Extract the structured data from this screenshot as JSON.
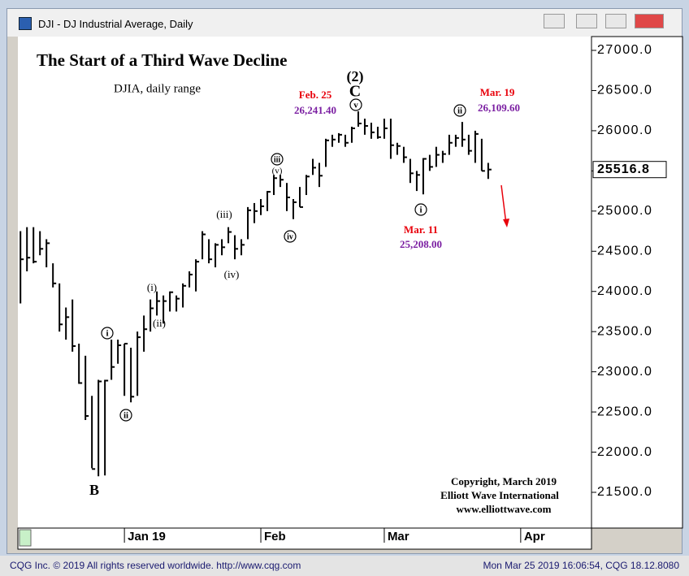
{
  "window": {
    "title": "DJI - DJ Industrial Average, Daily"
  },
  "footer": {
    "left": "CQG Inc. © 2019 All rights reserved worldwide. http://www.cqg.com",
    "right": "Mon Mar 25 2019 16:06:54, CQG 18.12.8080"
  },
  "chart_data": {
    "type": "range-bar",
    "title": "The Start of a Third Wave Decline",
    "subtitle": "DJIA, daily range",
    "color": "#000000",
    "categories": [
      null,
      null,
      null,
      null,
      null,
      null,
      null,
      null,
      null,
      null,
      null,
      null,
      null,
      null,
      null,
      null,
      null,
      null,
      null,
      null,
      null,
      null,
      null,
      null,
      null,
      null,
      null,
      null,
      null,
      null,
      null,
      null,
      null,
      null,
      null,
      null,
      null,
      null,
      null,
      null,
      null,
      null,
      null,
      null,
      null,
      null,
      null,
      null,
      null,
      null,
      null,
      null,
      null,
      null,
      null,
      null,
      null,
      null,
      null,
      null,
      null,
      null,
      null,
      null,
      null,
      null,
      null,
      null,
      null,
      null,
      null,
      null,
      null
    ],
    "high": [
      24750,
      24800,
      24800,
      24750,
      24650,
      24350,
      24100,
      23800,
      23900,
      23350,
      23200,
      22700,
      22900,
      22900,
      23400,
      23400,
      23350,
      23300,
      23500,
      23700,
      23900,
      24000,
      23950,
      24000,
      23950,
      24100,
      24250,
      24400,
      24750,
      24650,
      24600,
      24650,
      24800,
      24700,
      24650,
      25050,
      25100,
      25150,
      25250,
      25450,
      25450,
      25350,
      25150,
      25300,
      25450,
      25650,
      25600,
      25900,
      25950,
      25970,
      25950,
      26050,
      26241.4,
      26150,
      26100,
      26050,
      26150,
      26150,
      25850,
      25800,
      25650,
      25500,
      25660,
      25700,
      25800,
      25750,
      25950,
      25950,
      26109.6,
      25950,
      26000,
      25900,
      25600
    ],
    "low": [
      23850,
      24250,
      24350,
      24450,
      24300,
      24050,
      23500,
      23400,
      23250,
      22850,
      22400,
      21800,
      21700,
      21710,
      22900,
      23100,
      22700,
      22620,
      22700,
      23250,
      23500,
      23700,
      23600,
      23750,
      23750,
      23800,
      24050,
      24000,
      24400,
      24350,
      24300,
      24450,
      24600,
      24400,
      24450,
      24650,
      24850,
      24950,
      25000,
      25200,
      25300,
      25000,
      24900,
      25050,
      25200,
      25450,
      25300,
      25550,
      25800,
      25850,
      25800,
      25850,
      26050,
      25950,
      25900,
      25900,
      25900,
      25650,
      25700,
      25600,
      25350,
      25250,
      25208,
      25500,
      25550,
      25600,
      25700,
      25800,
      25800,
      25700,
      25600,
      25500,
      25400
    ],
    "close": [
      24400,
      24420,
      24370,
      24530,
      24600,
      24100,
      23590,
      23680,
      23320,
      22860,
      22450,
      21790,
      22880,
      22890,
      23060,
      23330,
      23350,
      22690,
      23430,
      23530,
      23790,
      23880,
      23880,
      23990,
      23910,
      24070,
      24210,
      24370,
      24710,
      24400,
      24580,
      24550,
      24740,
      24530,
      24580,
      25010,
      25000,
      25060,
      25240,
      25410,
      25390,
      25170,
      25110,
      25050,
      25430,
      25540,
      25440,
      25880,
      25890,
      25950,
      25850,
      26030,
      26090,
      26060,
      25980,
      25920,
      26030,
      25820,
      25810,
      25670,
      25470,
      25450,
      25650,
      25550,
      25700,
      25710,
      25850,
      25910,
      25890,
      25750,
      25960,
      25500,
      25516.8
    ],
    "xlim": [
      -0.4,
      87.9
    ],
    "xticks": [
      {
        "value": 16,
        "label": "Jan 19"
      },
      {
        "value": 37,
        "label": "Feb"
      },
      {
        "value": 56,
        "label": "Mar"
      },
      {
        "value": 77,
        "label": "Apr"
      }
    ],
    "ylim": [
      21055,
      27172
    ],
    "yticks": [
      {
        "value": 21500,
        "label": "21500.0"
      },
      {
        "value": 22000,
        "label": "22000.0"
      },
      {
        "value": 22500,
        "label": "22500.0"
      },
      {
        "value": 23000,
        "label": "23000.0"
      },
      {
        "value": 23500,
        "label": "23500.0"
      },
      {
        "value": 24000,
        "label": "24000.0"
      },
      {
        "value": 24500,
        "label": "24500.0"
      },
      {
        "value": 25000,
        "label": "25000.0"
      },
      {
        "value": 25500,
        "label": "25500.0"
      },
      {
        "value": 26000,
        "label": "26000.0"
      },
      {
        "value": 26500,
        "label": "26500.0"
      },
      {
        "value": 27000,
        "label": "27000.0"
      }
    ],
    "annotations": [
      {
        "text": "(2)",
        "color": "#000000"
      },
      {
        "text": "C",
        "color": "#000000"
      },
      {
        "text": "v",
        "color": "#000000"
      },
      {
        "text": "Feb. 25",
        "color": "#e8000b"
      },
      {
        "text": "26,241.40",
        "color": "#7b1fa2"
      },
      {
        "text": "Mar. 19",
        "color": "#e8000b"
      },
      {
        "text": "26,109.60",
        "color": "#7b1fa2"
      },
      {
        "text": "ii",
        "color": "#000000"
      },
      {
        "text": "i",
        "color": "#000000"
      },
      {
        "text": "Mar. 11",
        "color": "#e8000b"
      },
      {
        "text": "25,208.00",
        "color": "#7b1fa2"
      },
      {
        "text": "iii",
        "color": "#000000"
      },
      {
        "text": "(v)",
        "color": "#000000"
      },
      {
        "text": "iv",
        "color": "#000000"
      },
      {
        "text": "(iii)",
        "color": "#000000"
      },
      {
        "text": "(iv)",
        "color": "#000000"
      },
      {
        "text": "(i)",
        "color": "#000000"
      },
      {
        "text": "(ii)",
        "color": "#000000"
      },
      {
        "text": "i",
        "color": "#000000"
      },
      {
        "text": "ii",
        "color": "#000000"
      },
      {
        "text": "B",
        "color": "#000000"
      }
    ],
    "notes": [
      "Copyright, March 2019",
      "Elliott Wave International",
      "www.elliottwave.com"
    ]
  }
}
